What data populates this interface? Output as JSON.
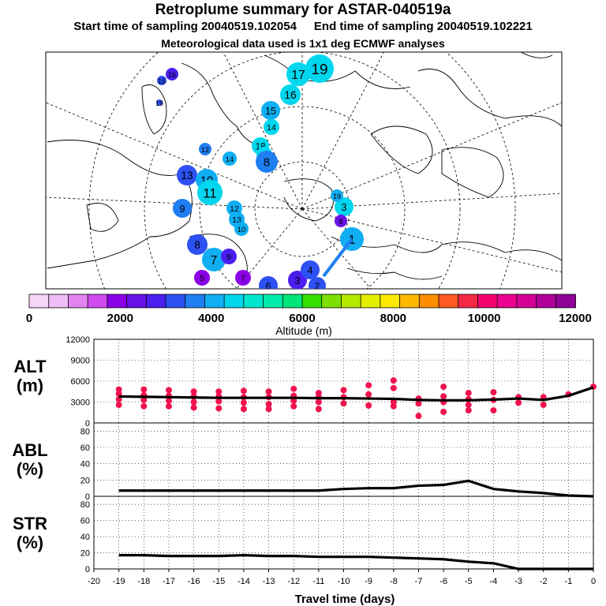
{
  "header": {
    "title": "Retroplume summary for ASTAR-040519a",
    "start_time": "Start time of sampling 20040519.102054",
    "end_time": "End time of sampling 20040519.102221",
    "met_data": "Meteorological data used is 1x1 deg ECMWF analyses"
  },
  "colorbar": {
    "label": "Altitude (m)",
    "tick_labels": [
      "0",
      "2000",
      "4000",
      "6000",
      "8000",
      "10000",
      "12000"
    ],
    "colors": [
      "#f6d6f6",
      "#eebcf6",
      "#e283f0",
      "#cf4bef",
      "#8a00e6",
      "#6a10e8",
      "#4a1ff0",
      "#2d50f2",
      "#1f7ef2",
      "#10aef2",
      "#00d6ee",
      "#00e6cc",
      "#00ebaa",
      "#00e67a",
      "#33e000",
      "#7de000",
      "#b5e800",
      "#e4ee00",
      "#fde800",
      "#fdb800",
      "#fc8c00",
      "#fc5a20",
      "#f62846",
      "#f4006e",
      "#ec0090",
      "#d40096",
      "#b0009a",
      "#8e0096"
    ]
  },
  "map": {
    "labels": [
      {
        "text": "19",
        "color": "#00d6ee",
        "r": 18
      },
      {
        "text": "17",
        "color": "#00d6ee",
        "r": 15
      },
      {
        "text": "16",
        "color": "#00d6ee",
        "r": 13
      },
      {
        "text": "15",
        "color": "#10aef2",
        "r": 12
      },
      {
        "text": "14",
        "color": "#00d6ee",
        "r": 10
      },
      {
        "text": "18",
        "color": "#00d6ee",
        "r": 11
      },
      {
        "text": "16",
        "color": "#00d6ee",
        "r": 10
      },
      {
        "text": "8",
        "color": "#1f7ef2",
        "r": 14
      },
      {
        "text": "13",
        "color": "#2d50f2",
        "r": 13
      },
      {
        "text": "10",
        "color": "#10aef2",
        "r": 14
      },
      {
        "text": "11",
        "color": "#00d6ee",
        "r": 16
      },
      {
        "text": "12",
        "color": "#1f7ef2",
        "r": 8
      },
      {
        "text": "14",
        "color": "#10aef2",
        "r": 9
      },
      {
        "text": "9",
        "color": "#1f7ef2",
        "r": 12
      },
      {
        "text": "12",
        "color": "#10aef2",
        "r": 10
      },
      {
        "text": "13",
        "color": "#10aef2",
        "r": 10
      },
      {
        "text": "10",
        "color": "#10aef2",
        "r": 9
      },
      {
        "text": "8",
        "color": "#2d50f2",
        "r": 13
      },
      {
        "text": "7",
        "color": "#10aef2",
        "r": 15
      },
      {
        "text": "9",
        "color": "#4a1ff0",
        "r": 10
      },
      {
        "text": "6",
        "color": "#2d50f2",
        "r": 12
      },
      {
        "text": "3",
        "color": "#4a1ff0",
        "r": 12
      },
      {
        "text": "4",
        "color": "#2d50f2",
        "r": 12
      },
      {
        "text": "2",
        "color": "#2d50f2",
        "r": 11
      },
      {
        "text": "1",
        "color": "#10aef2",
        "r": 15
      },
      {
        "text": "3",
        "color": "#00d6ee",
        "r": 12
      },
      {
        "text": "19",
        "color": "#10aef2",
        "r": 8
      },
      {
        "text": "8",
        "color": "#6a10e8",
        "r": 8
      },
      {
        "text": "16",
        "color": "#4a1ff0",
        "r": 8
      },
      {
        "text": "15",
        "color": "#2d50f2",
        "r": 6
      },
      {
        "text": "19",
        "color": "#2d50f2",
        "r": 4
      },
      {
        "text": "5",
        "color": "#8a00e6",
        "r": 10
      },
      {
        "text": "7",
        "color": "#8a00e6",
        "r": 10
      }
    ]
  },
  "chart_data": [
    {
      "type": "scatter",
      "name": "ALT",
      "ylabel": "ALT (m)",
      "ylabel_lines": [
        "ALT",
        "(m)"
      ],
      "ylim": [
        0,
        12000
      ],
      "yticks": [
        "0",
        "3000",
        "6000",
        "9000",
        "12000"
      ],
      "xlim": [
        -20,
        0
      ],
      "x": [
        -19,
        -18,
        -17,
        -16,
        -15,
        -14,
        -13,
        -12,
        -11,
        -10,
        -9,
        -8,
        -7,
        -6,
        -5,
        -4,
        -3,
        -2,
        -1,
        0
      ],
      "mean_line": [
        3800,
        3750,
        3700,
        3650,
        3600,
        3600,
        3600,
        3600,
        3550,
        3550,
        3500,
        3450,
        3300,
        3250,
        3250,
        3350,
        3500,
        3300,
        3900,
        5100
      ],
      "scatter_points": [
        {
          "x": -19,
          "y": 4800
        },
        {
          "x": -19,
          "y": 4200
        },
        {
          "x": -19,
          "y": 3400
        },
        {
          "x": -19,
          "y": 2600
        },
        {
          "x": -18,
          "y": 4800
        },
        {
          "x": -18,
          "y": 4000
        },
        {
          "x": -18,
          "y": 3300
        },
        {
          "x": -18,
          "y": 2400
        },
        {
          "x": -17,
          "y": 4700
        },
        {
          "x": -17,
          "y": 3900
        },
        {
          "x": -17,
          "y": 3200
        },
        {
          "x": -17,
          "y": 2400
        },
        {
          "x": -16,
          "y": 4500
        },
        {
          "x": -16,
          "y": 3800
        },
        {
          "x": -16,
          "y": 3000
        },
        {
          "x": -16,
          "y": 2200
        },
        {
          "x": -15,
          "y": 4500
        },
        {
          "x": -15,
          "y": 3800
        },
        {
          "x": -15,
          "y": 3100
        },
        {
          "x": -15,
          "y": 2100
        },
        {
          "x": -14,
          "y": 4600
        },
        {
          "x": -14,
          "y": 3700
        },
        {
          "x": -14,
          "y": 2900
        },
        {
          "x": -14,
          "y": 2000
        },
        {
          "x": -13,
          "y": 4500
        },
        {
          "x": -13,
          "y": 3700
        },
        {
          "x": -13,
          "y": 2700
        },
        {
          "x": -13,
          "y": 2000
        },
        {
          "x": -12,
          "y": 4900
        },
        {
          "x": -12,
          "y": 3900
        },
        {
          "x": -12,
          "y": 3200
        },
        {
          "x": -12,
          "y": 2400
        },
        {
          "x": -11,
          "y": 4300
        },
        {
          "x": -11,
          "y": 3700
        },
        {
          "x": -11,
          "y": 3000
        },
        {
          "x": -11,
          "y": 2000
        },
        {
          "x": -10,
          "y": 4700
        },
        {
          "x": -10,
          "y": 3700
        },
        {
          "x": -10,
          "y": 2800
        },
        {
          "x": -9,
          "y": 5400
        },
        {
          "x": -9,
          "y": 4100
        },
        {
          "x": -9,
          "y": 2500
        },
        {
          "x": -8,
          "y": 6100
        },
        {
          "x": -8,
          "y": 5000
        },
        {
          "x": -8,
          "y": 3000
        },
        {
          "x": -8,
          "y": 2400
        },
        {
          "x": -7,
          "y": 3500
        },
        {
          "x": -7,
          "y": 2800
        },
        {
          "x": -7,
          "y": 1000
        },
        {
          "x": -6,
          "y": 5200
        },
        {
          "x": -6,
          "y": 3800
        },
        {
          "x": -6,
          "y": 3000
        },
        {
          "x": -6,
          "y": 1600
        },
        {
          "x": -5,
          "y": 4300
        },
        {
          "x": -5,
          "y": 3400
        },
        {
          "x": -5,
          "y": 2600
        },
        {
          "x": -5,
          "y": 1800
        },
        {
          "x": -4,
          "y": 4400
        },
        {
          "x": -4,
          "y": 3300
        },
        {
          "x": -4,
          "y": 1800
        },
        {
          "x": -3,
          "y": 3700
        },
        {
          "x": -3,
          "y": 2900
        },
        {
          "x": -2,
          "y": 3700
        },
        {
          "x": -2,
          "y": 2600
        },
        {
          "x": -1,
          "y": 4100
        },
        {
          "x": 0,
          "y": 5200
        }
      ]
    },
    {
      "type": "line",
      "name": "ABL",
      "ylabel": "ABL (%)",
      "ylabel_lines": [
        "ABL",
        "(%)"
      ],
      "ylim": [
        0,
        90
      ],
      "yticks": [
        "0",
        "20",
        "40",
        "60",
        "80"
      ],
      "xlim": [
        -20,
        0
      ],
      "x": [
        -19,
        -18,
        -17,
        -16,
        -15,
        -14,
        -13,
        -12,
        -11,
        -10,
        -9,
        -8,
        -7,
        -6,
        -5,
        -4,
        -3,
        -2,
        -1,
        0
      ],
      "values": [
        7,
        7,
        7,
        7,
        7,
        7,
        7,
        7,
        7,
        9,
        10,
        10,
        13,
        14,
        19,
        9,
        6,
        4,
        1,
        0
      ]
    },
    {
      "type": "line",
      "name": "STR",
      "ylabel": "STR (%)",
      "ylabel_lines": [
        "STR",
        "(%)"
      ],
      "ylim": [
        0,
        90
      ],
      "yticks": [
        "0",
        "20",
        "40",
        "60",
        "80"
      ],
      "xlim": [
        -20,
        0
      ],
      "x": [
        -19,
        -18,
        -17,
        -16,
        -15,
        -14,
        -13,
        -12,
        -11,
        -10,
        -9,
        -8,
        -7,
        -6,
        -5,
        -4,
        -3,
        -2,
        -1,
        0
      ],
      "values": [
        17,
        17,
        16,
        16,
        16,
        17,
        16,
        16,
        15,
        15,
        15,
        14,
        13,
        12,
        9,
        7,
        0,
        0,
        0,
        0
      ],
      "xlabel": "Travel time (days)",
      "xtick_labels": [
        "-20",
        "-19",
        "-18",
        "-17",
        "-16",
        "-15",
        "-14",
        "-13",
        "-12",
        "-11",
        "-10",
        "-9",
        "-8",
        "-7",
        "-6",
        "-5",
        "-4",
        "-3",
        "-2",
        "-1",
        "0"
      ]
    }
  ]
}
